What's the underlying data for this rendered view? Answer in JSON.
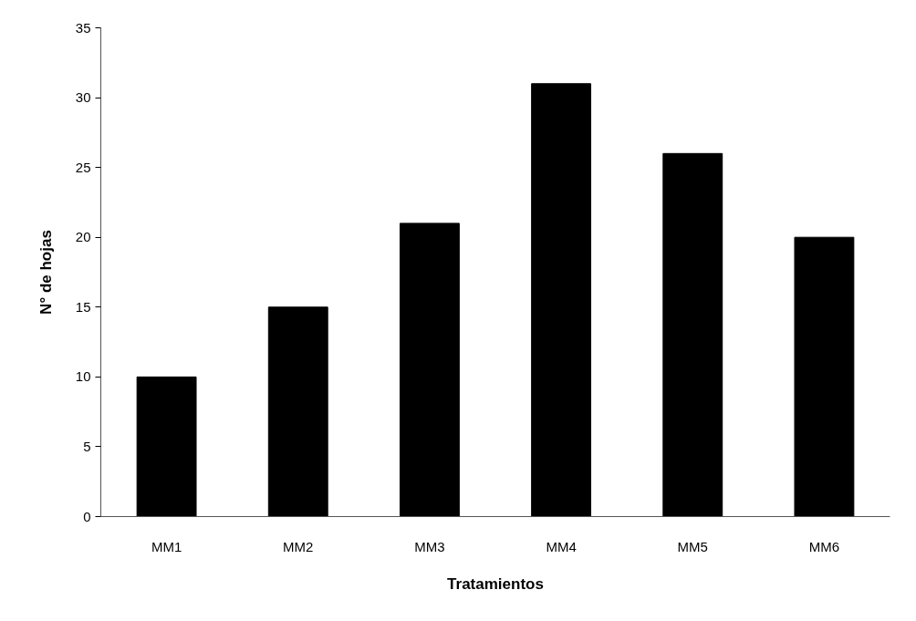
{
  "chart_data": {
    "type": "bar",
    "xlabel": "Tratamientos",
    "ylabel": "N° de hojas",
    "categories": [
      "MM1",
      "MM2",
      "MM3",
      "MM4",
      "MM5",
      "MM6"
    ],
    "values": [
      10,
      15,
      21,
      31,
      26,
      20
    ],
    "color": "#000000",
    "ylim": [
      0,
      35
    ],
    "yticks": [
      0,
      5,
      10,
      15,
      20,
      25,
      30,
      35
    ],
    "grid": false
  }
}
